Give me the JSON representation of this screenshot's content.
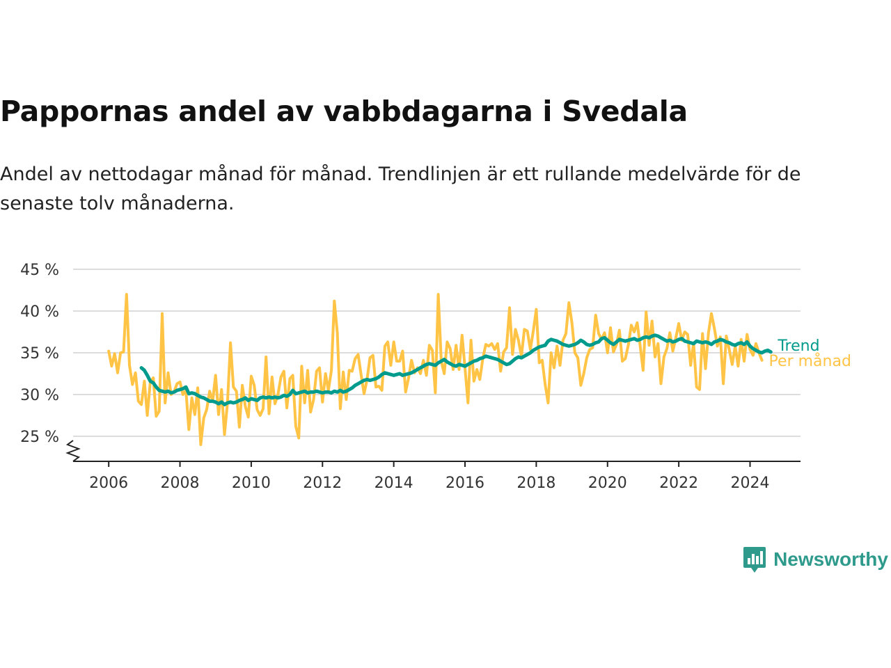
{
  "title": "Pappornas andel av vabbdagarna i Svedala",
  "subtitle": "Andel av nettodagar månad för månad. Trendlinjen är ett rullande medelvärde för de senaste tolv månaderna.",
  "brand": {
    "name": "Newsworthy",
    "icon": "newsworthy-logo-icon",
    "color": "#2e9a8c"
  },
  "chart_data": {
    "type": "line",
    "title": "Pappornas andel av vabbdagarna i Svedala",
    "ylim": [
      22,
      45
    ],
    "xlim": [
      "2005-01",
      "2025-06"
    ],
    "y_ticks": [
      25,
      30,
      35,
      40,
      45
    ],
    "y_tick_labels": [
      "25 %",
      "30 %",
      "35 %",
      "40 %",
      "45 %"
    ],
    "x_ticks": [
      "2006-01",
      "2008-01",
      "2010-01",
      "2012-01",
      "2014-01",
      "2016-01",
      "2018-01",
      "2020-01",
      "2022-01",
      "2024-01"
    ],
    "x_tick_labels": [
      "2006",
      "2008",
      "2010",
      "2012",
      "2014",
      "2016",
      "2018",
      "2020",
      "2022",
      "2024"
    ],
    "grid": true,
    "y_axis_break": true,
    "legend": "direct labels at line ends",
    "series": [
      {
        "name": "Per månad",
        "color": "#ffc445",
        "start": "2006-01",
        "values": [
          35.2,
          33.4,
          34.9,
          32.6,
          35.0,
          35.1,
          42.0,
          33.5,
          31.2,
          32.6,
          29.2,
          28.8,
          31.6,
          27.5,
          31.5,
          32.0,
          27.4,
          28.0,
          39.7,
          29.0,
          32.6,
          30.0,
          30.3,
          31.3,
          31.5,
          30.0,
          30.5,
          25.8,
          29.6,
          27.6,
          30.8,
          24.0,
          27.2,
          28.2,
          30.4,
          29.2,
          32.3,
          27.6,
          30.6,
          25.2,
          29.0,
          36.2,
          30.9,
          30.4,
          26.1,
          31.1,
          28.6,
          27.3,
          32.2,
          31.1,
          28.2,
          27.5,
          28.3,
          34.5,
          27.7,
          32.1,
          28.9,
          30.0,
          32.1,
          32.8,
          28.4,
          31.9,
          32.3,
          26.2,
          24.8,
          33.4,
          29.0,
          32.9,
          27.9,
          29.4,
          32.8,
          33.2,
          29.1,
          32.5,
          30.5,
          32.9,
          41.2,
          37.4,
          28.3,
          32.7,
          29.4,
          32.9,
          32.8,
          34.3,
          34.8,
          32.4,
          30.1,
          31.8,
          34.4,
          34.7,
          30.9,
          31.0,
          30.5,
          35.8,
          36.3,
          33.5,
          36.3,
          34.0,
          34.0,
          35.2,
          30.3,
          32.0,
          34.1,
          32.6,
          33.2,
          32.5,
          34.1,
          32.3,
          35.9,
          35.3,
          30.2,
          42.0,
          34.0,
          32.5,
          36.3,
          35.5,
          33.0,
          35.9,
          33.0,
          37.1,
          33.2,
          29.0,
          36.5,
          31.6,
          33.0,
          31.8,
          34.3,
          36.0,
          35.8,
          36.1,
          35.4,
          36.1,
          32.8,
          35.1,
          35.6,
          40.4,
          34.8,
          37.8,
          36.5,
          34.6,
          37.8,
          37.6,
          35.4,
          37.6,
          40.2,
          33.8,
          34.1,
          31.2,
          29.0,
          35.0,
          33.2,
          35.8,
          33.5,
          36.5,
          37.3,
          41.0,
          38.6,
          35.0,
          34.4,
          31.1,
          32.5,
          34.4,
          35.4,
          35.6,
          39.5,
          37.3,
          36.6,
          37.4,
          35.0,
          38.0,
          35.1,
          36.0,
          37.7,
          34.0,
          34.3,
          35.9,
          38.3,
          37.5,
          38.6,
          35.8,
          32.9,
          39.9,
          35.9,
          38.8,
          34.5,
          36.1,
          31.3,
          34.5,
          35.5,
          37.4,
          35.2,
          36.8,
          38.5,
          36.5,
          37.5,
          37.2,
          33.5,
          36.2,
          30.9,
          30.6,
          37.3,
          33.1,
          37.4,
          39.7,
          37.9,
          35.8,
          36.9,
          31.3,
          37.0,
          35.4,
          33.6,
          35.8,
          33.4,
          36.6,
          34.0,
          37.2,
          35.4,
          34.7,
          36.1,
          35.0,
          34.1
        ]
      },
      {
        "name": "Trend",
        "color": "#009b8d",
        "start": "2006-12",
        "values": [
          33.2,
          32.9,
          32.3,
          31.6,
          31.4,
          30.9,
          30.5,
          30.4,
          30.3,
          30.4,
          30.2,
          30.3,
          30.5,
          30.6,
          30.7,
          30.9,
          30.1,
          30.2,
          30.1,
          29.9,
          29.7,
          29.6,
          29.4,
          29.2,
          29.2,
          29.1,
          28.9,
          29.1,
          28.8,
          29.0,
          29.1,
          29.0,
          29.1,
          29.3,
          29.4,
          29.6,
          29.3,
          29.5,
          29.4,
          29.3,
          29.6,
          29.7,
          29.6,
          29.7,
          29.6,
          29.7,
          29.6,
          29.7,
          29.9,
          29.8,
          30.0,
          30.5,
          30.1,
          30.2,
          30.3,
          30.4,
          30.2,
          30.3,
          30.3,
          30.4,
          30.3,
          30.2,
          30.3,
          30.3,
          30.2,
          30.4,
          30.3,
          30.5,
          30.3,
          30.4,
          30.6,
          30.8,
          31.1,
          31.3,
          31.5,
          31.7,
          31.8,
          31.7,
          31.8,
          31.9,
          32.1,
          32.4,
          32.6,
          32.5,
          32.4,
          32.3,
          32.4,
          32.5,
          32.3,
          32.4,
          32.5,
          32.6,
          32.8,
          33.0,
          33.2,
          33.4,
          33.6,
          33.7,
          33.6,
          33.5,
          33.8,
          34.0,
          34.2,
          33.9,
          33.7,
          33.5,
          33.4,
          33.6,
          33.5,
          33.4,
          33.6,
          33.8,
          34.0,
          34.1,
          34.3,
          34.4,
          34.6,
          34.5,
          34.4,
          34.3,
          34.2,
          34.0,
          33.8,
          33.6,
          33.7,
          34.0,
          34.3,
          34.5,
          34.4,
          34.6,
          34.8,
          35.0,
          35.3,
          35.5,
          35.7,
          35.8,
          35.9,
          36.4,
          36.6,
          36.5,
          36.4,
          36.2,
          36.0,
          35.9,
          35.8,
          35.9,
          36.0,
          36.2,
          36.5,
          36.3,
          36.0,
          35.9,
          36.0,
          36.2,
          36.3,
          36.7,
          36.8,
          36.5,
          36.2,
          36.0,
          36.3,
          36.6,
          36.5,
          36.4,
          36.5,
          36.6,
          36.7,
          36.5,
          36.6,
          36.8,
          36.9,
          36.8,
          37.0,
          37.1,
          37.0,
          36.8,
          36.6,
          36.4,
          36.5,
          36.3,
          36.4,
          36.6,
          36.7,
          36.4,
          36.3,
          36.2,
          36.1,
          36.4,
          36.3,
          36.2,
          36.3,
          36.2,
          36.0,
          36.3,
          36.4,
          36.6,
          36.5,
          36.3,
          36.2,
          36.0,
          35.9,
          36.1,
          36.2,
          36.0,
          36.3,
          35.8,
          35.5,
          35.3,
          35.1,
          35.0,
          35.2,
          35.3,
          35.1
        ]
      }
    ]
  }
}
